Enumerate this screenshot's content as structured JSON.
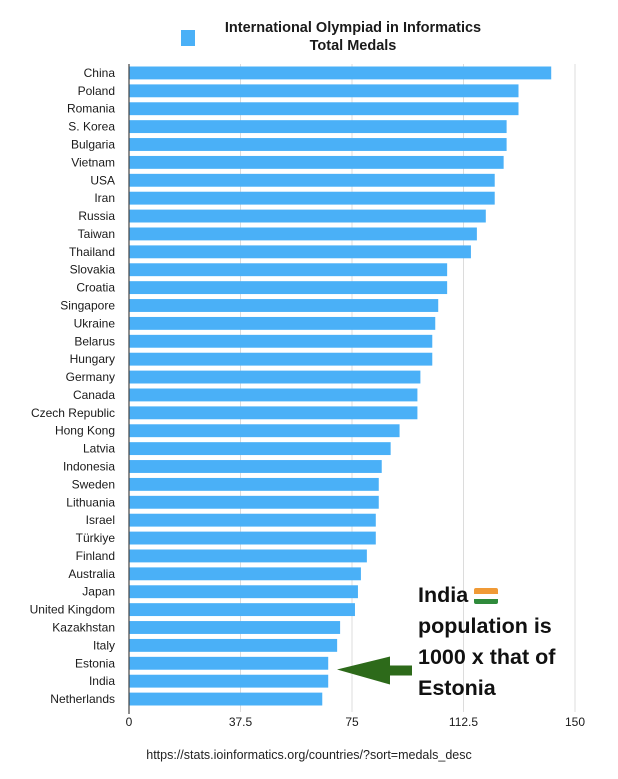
{
  "chart_data": {
    "type": "bar",
    "orientation": "horizontal",
    "title": "International Olympiad in Informatics Total Medals",
    "title_lines": [
      "International Olympiad in Informatics",
      "Total Medals"
    ],
    "legend": [
      {
        "name": "",
        "color": "#4ab0f7"
      }
    ],
    "legend_placement": "top-left",
    "xlabel": "",
    "ylabel": "",
    "xlim": [
      0,
      150
    ],
    "xticks": [
      0,
      37.5,
      75,
      112.5,
      150
    ],
    "xtick_labels": [
      "0",
      "37.5",
      "75",
      "112.5",
      "150"
    ],
    "grid": true,
    "bar_color": "#4ab0f7",
    "categories": [
      "China",
      "Poland",
      "Romania",
      "S. Korea",
      "Bulgaria",
      "Vietnam",
      "USA",
      "Iran",
      "Russia",
      "Taiwan",
      "Thailand",
      "Slovakia",
      "Croatia",
      "Singapore",
      "Ukraine",
      "Belarus",
      "Hungary",
      "Germany",
      "Canada",
      "Czech Republic",
      "Hong Kong",
      "Latvia",
      "Indonesia",
      "Sweden",
      "Lithuania",
      "Israel",
      "Türkiye",
      "Finland",
      "Australia",
      "Japan",
      "United Kingdom",
      "Kazakhstan",
      "Italy",
      "Estonia",
      "India",
      "Netherlands"
    ],
    "values": [
      142,
      131,
      131,
      127,
      127,
      126,
      123,
      123,
      120,
      117,
      115,
      107,
      107,
      104,
      103,
      102,
      102,
      98,
      97,
      97,
      91,
      88,
      85,
      84,
      84,
      83,
      83,
      80,
      78,
      77,
      76,
      71,
      70,
      67,
      67,
      65
    ],
    "annotation": {
      "lines": [
        "India",
        "population is",
        "1000 x that of",
        "Estonia"
      ],
      "flag": "india-flag",
      "arrow_color": "#2d6a1a",
      "points_to": "Estonia/India"
    },
    "source": "https://stats.ioinformatics.org/countries/?sort=medals_desc"
  }
}
